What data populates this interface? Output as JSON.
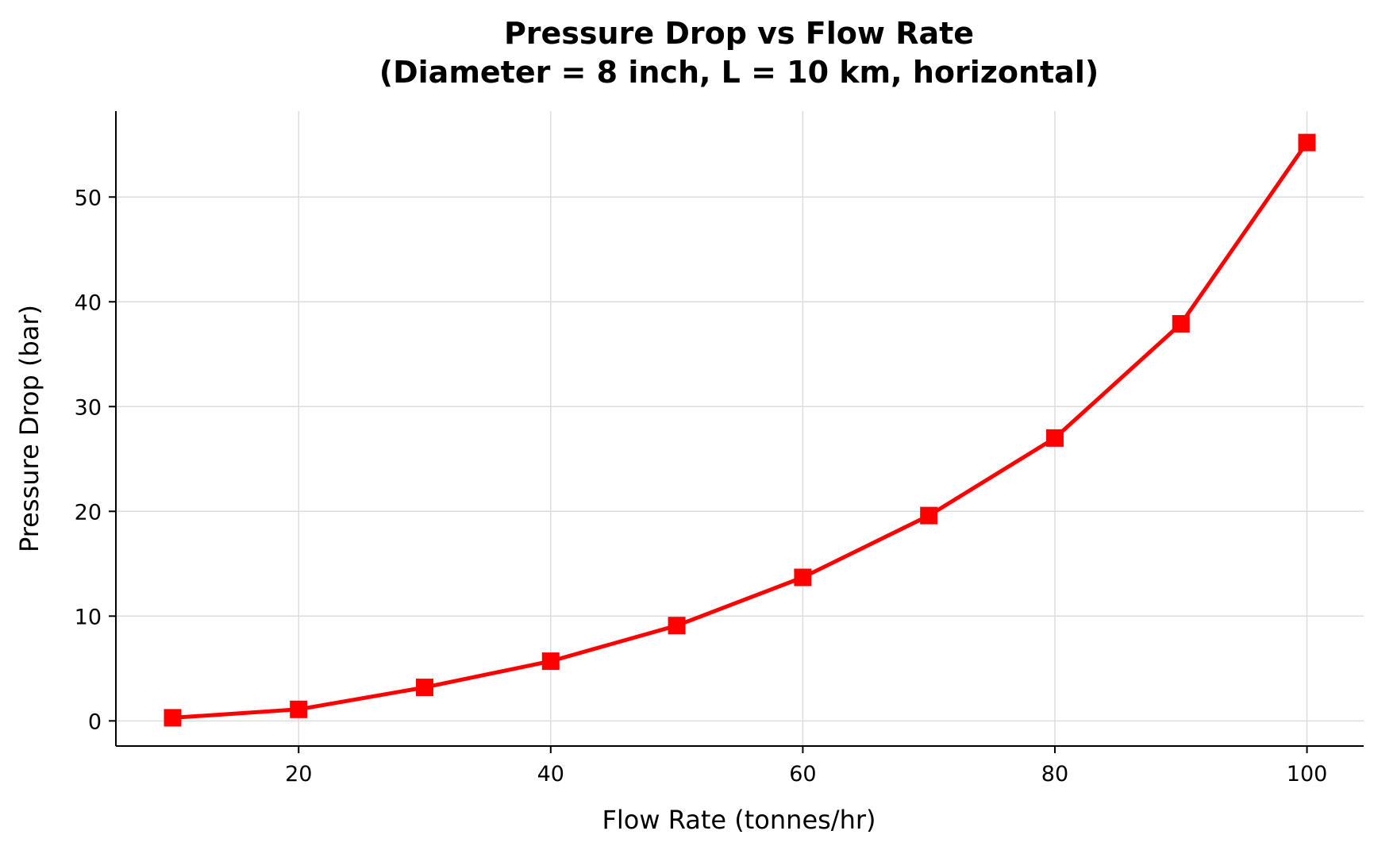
{
  "chart_data": {
    "type": "line",
    "title": "Pressure Drop vs Flow Rate",
    "subtitle": "(Diameter = 8 inch, L = 10 km, horizontal)",
    "xlabel": "Flow Rate (tonnes/hr)",
    "ylabel": "Pressure Drop (bar)",
    "xlim": [
      5.5,
      104.5
    ],
    "ylim": [
      -2.4,
      58.2
    ],
    "xticks": [
      20,
      40,
      60,
      80,
      100
    ],
    "yticks": [
      0,
      10,
      20,
      30,
      40,
      50
    ],
    "grid": true,
    "series": [
      {
        "color": "#ff0000",
        "marker": "square",
        "x": [
          10,
          20,
          30,
          40,
          50,
          60,
          70,
          80,
          90,
          100
        ],
        "y": [
          0.3,
          1.1,
          3.2,
          5.7,
          9.1,
          13.7,
          19.6,
          27.0,
          37.9,
          55.2
        ]
      }
    ]
  }
}
